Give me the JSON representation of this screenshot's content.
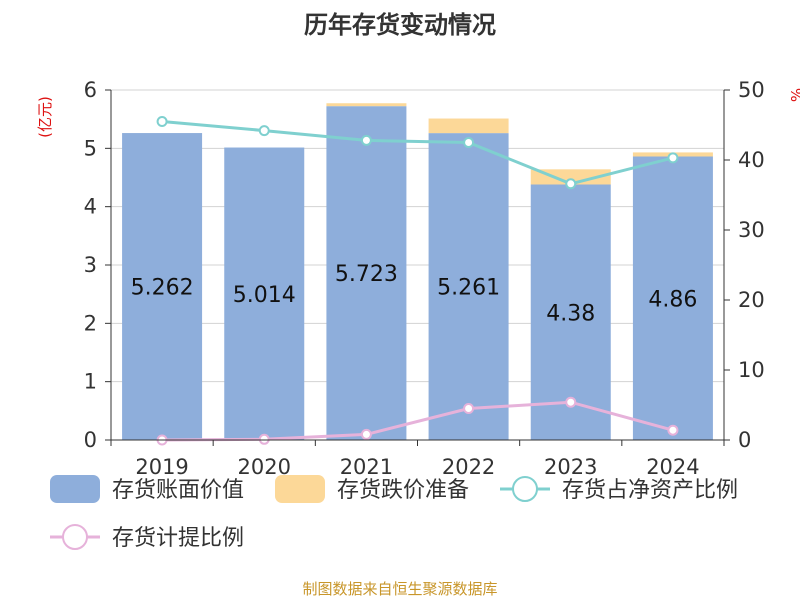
{
  "chart_data": {
    "type": "bar",
    "title": "历年存货变动情况",
    "categories": [
      "2019",
      "2020",
      "2021",
      "2022",
      "2023",
      "2024"
    ],
    "y_left": {
      "unit_label": "(亿元)",
      "ylim": [
        0,
        6
      ],
      "ticks": [
        "0",
        "1",
        "2",
        "3",
        "4",
        "5",
        "6"
      ]
    },
    "y_right": {
      "unit_label": "%",
      "ylim": [
        0,
        50
      ],
      "ticks": [
        "0",
        "10",
        "20",
        "30",
        "40",
        "50"
      ]
    },
    "series": [
      {
        "name": "存货账面价值",
        "kind": "bar",
        "axis": "left",
        "color": "#8eaedb",
        "values": [
          5.262,
          5.014,
          5.723,
          5.261,
          4.38,
          4.86
        ],
        "labels": [
          "5.262",
          "5.014",
          "5.723",
          "5.261",
          "4.38",
          "4.86"
        ]
      },
      {
        "name": "存货跌价准备",
        "kind": "bar",
        "axis": "left",
        "stacked": true,
        "color": "#fcd898",
        "values": [
          0.0,
          0.0,
          0.05,
          0.25,
          0.26,
          0.07
        ]
      },
      {
        "name": "存货占净资产比例",
        "kind": "line",
        "axis": "right",
        "color": "#7fd0cf",
        "values": [
          45.5,
          44.2,
          42.8,
          42.5,
          36.6,
          40.3
        ]
      },
      {
        "name": "存货计提比例",
        "kind": "line",
        "axis": "right",
        "color": "#e6b2da",
        "values": [
          0.0,
          0.1,
          0.8,
          4.5,
          5.4,
          1.4
        ]
      }
    ],
    "grid": true,
    "legend_position": "bottom"
  },
  "source_note": "制图数据来自恒生聚源数据库"
}
